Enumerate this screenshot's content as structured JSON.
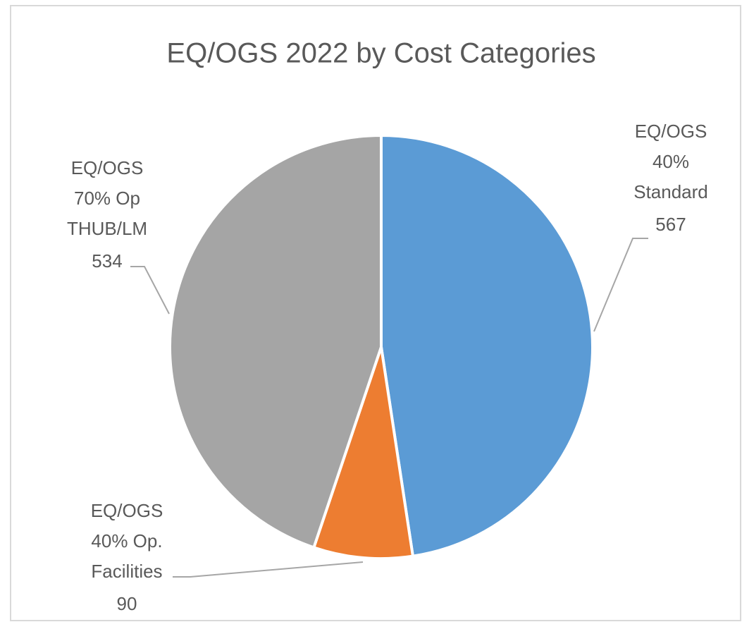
{
  "chart_data": {
    "type": "pie",
    "title": "EQ/OGS 2022 by Cost Categories",
    "categories": [
      "EQ/OGS\n40%\nStandard",
      "EQ/OGS\n40% Op.\nFacilities",
      "EQ/OGS\n70% Op\nTHUB/LM"
    ],
    "values": [
      567,
      90,
      534
    ],
    "colors": [
      "#5b9bd5",
      "#ed7d31",
      "#a5a5a5"
    ]
  }
}
